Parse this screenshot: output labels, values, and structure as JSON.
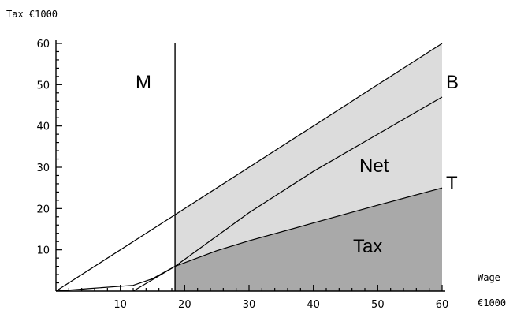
{
  "chart_data": {
    "type": "area",
    "title": "",
    "ylabel": "Tax  €1000",
    "xlabel_top": "Wage",
    "xlabel_bottom": "€1000",
    "xlim": [
      0,
      60
    ],
    "ylim": [
      0,
      60
    ],
    "xticks": [
      10,
      20,
      30,
      40,
      50,
      60
    ],
    "yticks": [
      10,
      20,
      30,
      40,
      50,
      60
    ],
    "grid": false,
    "minimum_wage_x": 18.5,
    "series": [
      {
        "name": "B",
        "x": [
          0,
          18.5,
          30,
          40,
          50,
          60
        ],
        "y": [
          0,
          18.5,
          30,
          40,
          50,
          60
        ]
      },
      {
        "name": "",
        "x": [
          12,
          18.5,
          30,
          40,
          50,
          60
        ],
        "y": [
          0,
          6,
          19,
          29,
          38,
          47
        ]
      },
      {
        "name": "T",
        "x": [
          0,
          5,
          12,
          15,
          18.5,
          25,
          30,
          40,
          50,
          60
        ],
        "y": [
          0,
          0.6,
          1.4,
          3,
          6,
          9.8,
          12.2,
          16.5,
          20.8,
          25
        ]
      }
    ],
    "annotations": {
      "M": "M",
      "B": "B",
      "T": "T",
      "net": "Net",
      "tax": "Tax"
    },
    "colors": {
      "net_fill": "#dcdcdc",
      "tax_fill": "#a9a9a9",
      "line": "#000000"
    }
  }
}
